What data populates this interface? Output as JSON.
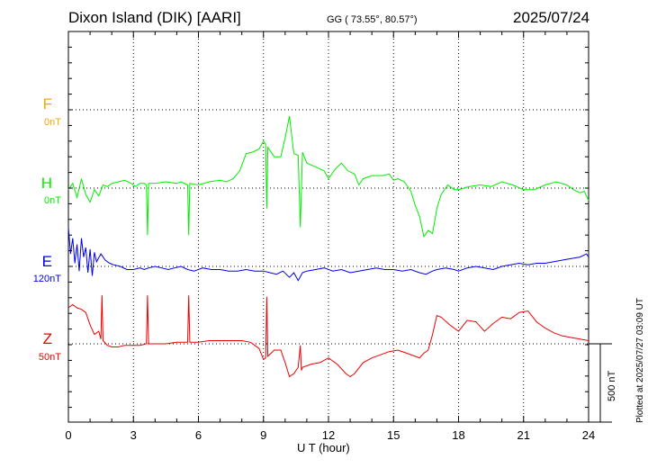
{
  "header": {
    "station": "Dixon Island (DIK)  [AARI]",
    "coords": "GG ( 73.55°,  80.57°)",
    "date": "2025/07/24"
  },
  "footer": {
    "plotted": "Plotted at 2025/07/27 03:09 UT",
    "scale": "500 nT"
  },
  "chart_data": {
    "type": "line",
    "xlabel": "U T (hour)",
    "xlim": [
      0,
      24
    ],
    "x_ticks": [
      "0",
      "3",
      "6",
      "9",
      "12",
      "15",
      "18",
      "21",
      "24"
    ],
    "y_units": "nT",
    "scale_bar_nT": 500,
    "series": [
      {
        "name": "F",
        "offset": "0nT",
        "color": "#f5a800",
        "points": []
      },
      {
        "name": "H",
        "offset": "0nT",
        "color": "#00ee00",
        "points": [
          [
            0,
            -10
          ],
          [
            0.2,
            30
          ],
          [
            0.4,
            -60
          ],
          [
            0.6,
            60
          ],
          [
            0.8,
            -40
          ],
          [
            1.0,
            -90
          ],
          [
            1.2,
            -10
          ],
          [
            1.4,
            -50
          ],
          [
            1.6,
            20
          ],
          [
            1.8,
            10
          ],
          [
            2.0,
            30
          ],
          [
            2.3,
            40
          ],
          [
            2.6,
            50
          ],
          [
            2.9,
            30
          ],
          [
            3.1,
            10
          ],
          [
            3.3,
            30
          ],
          [
            3.5,
            30
          ],
          [
            3.6,
            20
          ],
          [
            3.65,
            -300
          ],
          [
            3.7,
            30
          ],
          [
            4.0,
            30
          ],
          [
            4.5,
            40
          ],
          [
            5.0,
            30
          ],
          [
            5.2,
            40
          ],
          [
            5.5,
            20
          ],
          [
            5.55,
            -300
          ],
          [
            5.6,
            30
          ],
          [
            6.0,
            20
          ],
          [
            6.5,
            40
          ],
          [
            7.0,
            50
          ],
          [
            7.3,
            40
          ],
          [
            7.6,
            60
          ],
          [
            7.9,
            110
          ],
          [
            8.2,
            220
          ],
          [
            8.5,
            230
          ],
          [
            8.8,
            250
          ],
          [
            9.0,
            300
          ],
          [
            9.1,
            280
          ],
          [
            9.15,
            -130
          ],
          [
            9.2,
            260
          ],
          [
            9.5,
            200
          ],
          [
            9.8,
            200
          ],
          [
            10.0,
            320
          ],
          [
            10.2,
            460
          ],
          [
            10.4,
            220
          ],
          [
            10.6,
            210
          ],
          [
            10.7,
            -250
          ],
          [
            10.8,
            230
          ],
          [
            11.0,
            160
          ],
          [
            11.5,
            130
          ],
          [
            11.8,
            110
          ],
          [
            12.0,
            60
          ],
          [
            12.3,
            120
          ],
          [
            12.6,
            160
          ],
          [
            12.9,
            110
          ],
          [
            13.2,
            90
          ],
          [
            13.4,
            20
          ],
          [
            13.6,
            60
          ],
          [
            14.0,
            80
          ],
          [
            14.5,
            80
          ],
          [
            14.8,
            90
          ],
          [
            15.0,
            50
          ],
          [
            15.2,
            60
          ],
          [
            15.5,
            40
          ],
          [
            15.8,
            -20
          ],
          [
            16.0,
            -110
          ],
          [
            16.2,
            -180
          ],
          [
            16.4,
            -310
          ],
          [
            16.6,
            -270
          ],
          [
            16.8,
            -290
          ],
          [
            17.0,
            -130
          ],
          [
            17.2,
            -40
          ],
          [
            17.5,
            20
          ],
          [
            17.8,
            -10
          ],
          [
            18.0,
            -10
          ],
          [
            18.5,
            10
          ],
          [
            19.0,
            20
          ],
          [
            19.5,
            10
          ],
          [
            20.0,
            40
          ],
          [
            20.5,
            20
          ],
          [
            21.0,
            -10
          ],
          [
            21.5,
            -10
          ],
          [
            22.0,
            20
          ],
          [
            22.5,
            40
          ],
          [
            23.0,
            20
          ],
          [
            23.3,
            -10
          ],
          [
            23.6,
            -30
          ],
          [
            23.8,
            -20
          ],
          [
            24.0,
            -80
          ]
        ]
      },
      {
        "name": "E",
        "offset": "120nT",
        "color": "#0000ee",
        "points": [
          [
            0,
            250
          ],
          [
            0.1,
            80
          ],
          [
            0.2,
            180
          ],
          [
            0.3,
            20
          ],
          [
            0.4,
            140
          ],
          [
            0.5,
            -30
          ],
          [
            0.6,
            180
          ],
          [
            0.7,
            60
          ],
          [
            0.8,
            120
          ],
          [
            0.9,
            -40
          ],
          [
            1.0,
            110
          ],
          [
            1.1,
            -60
          ],
          [
            1.2,
            90
          ],
          [
            1.3,
            30
          ],
          [
            1.5,
            80
          ],
          [
            1.7,
            40
          ],
          [
            1.9,
            20
          ],
          [
            2.1,
            10
          ],
          [
            2.4,
            0
          ],
          [
            2.7,
            -20
          ],
          [
            3.0,
            -20
          ],
          [
            3.3,
            -10
          ],
          [
            3.5,
            -20
          ],
          [
            3.7,
            -10
          ],
          [
            4.0,
            0
          ],
          [
            4.3,
            -10
          ],
          [
            4.6,
            -20
          ],
          [
            4.9,
            -10
          ],
          [
            5.2,
            0
          ],
          [
            5.5,
            -20
          ],
          [
            5.8,
            -30
          ],
          [
            6.2,
            -10
          ],
          [
            6.6,
            -20
          ],
          [
            7.0,
            -20
          ],
          [
            7.4,
            -30
          ],
          [
            7.8,
            -30
          ],
          [
            8.2,
            -20
          ],
          [
            8.6,
            -30
          ],
          [
            9.0,
            -30
          ],
          [
            9.3,
            -40
          ],
          [
            9.6,
            -50
          ],
          [
            9.9,
            -30
          ],
          [
            10.2,
            -70
          ],
          [
            10.4,
            -40
          ],
          [
            10.6,
            -90
          ],
          [
            10.8,
            -40
          ],
          [
            11.0,
            -30
          ],
          [
            11.4,
            -20
          ],
          [
            11.8,
            -10
          ],
          [
            12.2,
            -30
          ],
          [
            12.6,
            -20
          ],
          [
            13.0,
            -40
          ],
          [
            13.4,
            -30
          ],
          [
            13.8,
            -20
          ],
          [
            14.2,
            -10
          ],
          [
            14.6,
            -20
          ],
          [
            15.0,
            -20
          ],
          [
            15.4,
            -30
          ],
          [
            15.8,
            -20
          ],
          [
            16.2,
            -40
          ],
          [
            16.5,
            -50
          ],
          [
            16.8,
            -30
          ],
          [
            17.0,
            -20
          ],
          [
            17.4,
            -10
          ],
          [
            17.8,
            -20
          ],
          [
            18.0,
            -30
          ],
          [
            18.4,
            -10
          ],
          [
            18.8,
            0
          ],
          [
            19.2,
            -10
          ],
          [
            19.6,
            -20
          ],
          [
            20.0,
            0
          ],
          [
            20.4,
            10
          ],
          [
            20.8,
            20
          ],
          [
            21.2,
            10
          ],
          [
            21.6,
            20
          ],
          [
            22.0,
            20
          ],
          [
            22.4,
            30
          ],
          [
            22.8,
            40
          ],
          [
            23.2,
            50
          ],
          [
            23.6,
            60
          ],
          [
            23.9,
            80
          ],
          [
            24.0,
            60
          ]
        ]
      },
      {
        "name": "Z",
        "offset": "50nT",
        "color": "#ee0000",
        "points": [
          [
            0,
            230
          ],
          [
            0.2,
            250
          ],
          [
            0.4,
            230
          ],
          [
            0.6,
            220
          ],
          [
            0.8,
            200
          ],
          [
            1.0,
            120
          ],
          [
            1.2,
            60
          ],
          [
            1.4,
            80
          ],
          [
            1.5,
            30
          ],
          [
            1.55,
            310
          ],
          [
            1.6,
            20
          ],
          [
            1.8,
            -10
          ],
          [
            2.0,
            -20
          ],
          [
            2.3,
            -20
          ],
          [
            2.6,
            -10
          ],
          [
            3.0,
            -10
          ],
          [
            3.3,
            -10
          ],
          [
            3.6,
            0
          ],
          [
            3.65,
            310
          ],
          [
            3.7,
            0
          ],
          [
            4.0,
            0
          ],
          [
            4.5,
            0
          ],
          [
            5.0,
            10
          ],
          [
            5.5,
            10
          ],
          [
            5.55,
            310
          ],
          [
            5.6,
            10
          ],
          [
            6.0,
            10
          ],
          [
            6.5,
            20
          ],
          [
            7.0,
            20
          ],
          [
            7.5,
            20
          ],
          [
            8.0,
            20
          ],
          [
            8.4,
            10
          ],
          [
            8.8,
            -30
          ],
          [
            9.0,
            -100
          ],
          [
            9.1,
            -90
          ],
          [
            9.15,
            300
          ],
          [
            9.2,
            -80
          ],
          [
            9.5,
            -40
          ],
          [
            9.8,
            -40
          ],
          [
            10.0,
            -120
          ],
          [
            10.2,
            -210
          ],
          [
            10.4,
            -190
          ],
          [
            10.6,
            -150
          ],
          [
            10.7,
            -10
          ],
          [
            10.75,
            -170
          ],
          [
            10.8,
            -150
          ],
          [
            11.2,
            -130
          ],
          [
            11.6,
            -120
          ],
          [
            12.0,
            -90
          ],
          [
            12.4,
            -130
          ],
          [
            12.8,
            -190
          ],
          [
            13.0,
            -210
          ],
          [
            13.2,
            -190
          ],
          [
            13.6,
            -120
          ],
          [
            14.0,
            -90
          ],
          [
            14.4,
            -70
          ],
          [
            14.8,
            -50
          ],
          [
            15.2,
            -40
          ],
          [
            15.6,
            -60
          ],
          [
            16.0,
            -80
          ],
          [
            16.2,
            -90
          ],
          [
            16.4,
            -60
          ],
          [
            16.6,
            -40
          ],
          [
            16.8,
            60
          ],
          [
            17.0,
            180
          ],
          [
            17.2,
            170
          ],
          [
            17.6,
            120
          ],
          [
            18.0,
            80
          ],
          [
            18.4,
            150
          ],
          [
            18.8,
            140
          ],
          [
            19.2,
            80
          ],
          [
            19.6,
            130
          ],
          [
            20.0,
            170
          ],
          [
            20.4,
            160
          ],
          [
            20.8,
            200
          ],
          [
            21.2,
            210
          ],
          [
            21.6,
            140
          ],
          [
            22.0,
            100
          ],
          [
            22.4,
            70
          ],
          [
            22.8,
            50
          ],
          [
            23.2,
            40
          ],
          [
            23.6,
            30
          ],
          [
            24.0,
            20
          ]
        ]
      }
    ]
  }
}
